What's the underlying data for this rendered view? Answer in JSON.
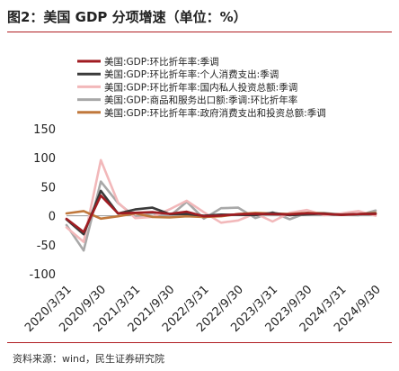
{
  "title": "图2：美国 GDP 分项增速（单位：%）",
  "source": "资料来源：wind，民生证券研究院",
  "chart_data": {
    "type": "line",
    "ylim": [
      -100,
      150
    ],
    "yticks": [
      -100,
      -50,
      0,
      50,
      100,
      150
    ],
    "xticks": [
      "2020/3/31",
      "2020/9/30",
      "2021/3/31",
      "2021/9/30",
      "2022/3/31",
      "2022/9/30",
      "2023/3/31",
      "2023/9/30",
      "2024/3/31",
      "2024/9/30"
    ],
    "x": [
      "2020/3/31",
      "2020/6/30",
      "2020/9/30",
      "2020/12/31",
      "2021/3/31",
      "2021/6/30",
      "2021/9/30",
      "2021/12/31",
      "2022/3/31",
      "2022/6/30",
      "2022/9/30",
      "2022/12/31",
      "2023/3/31",
      "2023/6/30",
      "2023/9/30",
      "2023/12/31",
      "2024/3/31",
      "2024/6/30",
      "2024/9/30"
    ],
    "legend_position": "top",
    "series": [
      {
        "name": "美国:GDP:环比折年率:季调",
        "color": "#a01c22",
        "values": [
          -5.3,
          -28.0,
          34.8,
          4.2,
          5.2,
          6.2,
          3.3,
          7.0,
          -1.0,
          0.3,
          2.7,
          3.4,
          2.8,
          2.4,
          4.4,
          3.2,
          1.6,
          3.0,
          3.1
        ]
      },
      {
        "name": "美国:GDP:环比折年率:个人消费支出:季调",
        "color": "#3a3a3a",
        "values": [
          -6.4,
          -32.0,
          43.0,
          3.8,
          10.8,
          14.0,
          3.0,
          3.1,
          0.0,
          2.0,
          1.6,
          1.2,
          4.9,
          1.0,
          2.5,
          3.5,
          1.9,
          2.8,
          3.7
        ]
      },
      {
        "name": "美国:GDP:环比折年率:国内私人投资总额:季调",
        "color": "#f2b8ba",
        "values": [
          -20.0,
          -45.0,
          96.0,
          23.0,
          -4.0,
          -2.0,
          11.0,
          26.0,
          6.0,
          -12.0,
          -8.0,
          4.0,
          -10.0,
          5.0,
          10.0,
          1.0,
          4.0,
          8.0,
          0.0
        ]
      },
      {
        "name": "美国:GDP:商品和服务出口额:季调:环比折年率",
        "color": "#a8a8a8",
        "values": [
          -16.0,
          -60.0,
          59.0,
          22.0,
          -2.0,
          4.0,
          -1.0,
          24.0,
          -5.0,
          13.0,
          14.0,
          -4.0,
          6.0,
          -6.0,
          5.0,
          5.0,
          1.6,
          1.0,
          9.0
        ]
      },
      {
        "name": "美国:GDP:环比折年率:政府消费支出和投资总额:季调",
        "color": "#c0783c",
        "values": [
          4.0,
          8.0,
          -5.0,
          -1.0,
          4.0,
          -2.0,
          -3.0,
          -1.0,
          -2.0,
          -1.0,
          3.0,
          5.0,
          4.0,
          3.0,
          5.0,
          4.0,
          1.8,
          3.0,
          5.0
        ]
      }
    ]
  }
}
